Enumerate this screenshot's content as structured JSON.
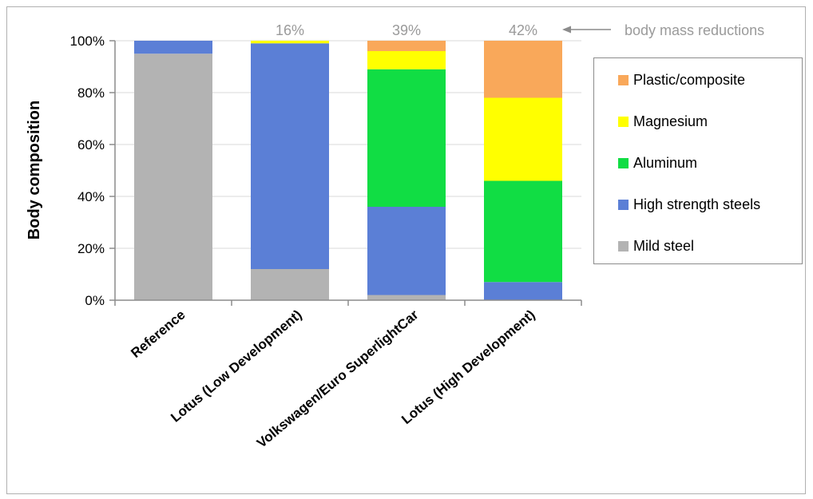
{
  "chart_data": {
    "type": "bar",
    "stacked": true,
    "categories": [
      "Reference",
      "Lotus (Low Development)",
      "Volkswagen/Euro SuperlightCar",
      "Lotus (High Development)"
    ],
    "ylabel": "Body composition",
    "ylim": [
      0,
      100
    ],
    "yticks": [
      "0%",
      "20%",
      "40%",
      "60%",
      "80%",
      "100%"
    ],
    "grid": true,
    "legend_position": "right",
    "series": [
      {
        "name": "Mild steel",
        "color": "#b3b3b3",
        "values": [
          95,
          12,
          2,
          0
        ]
      },
      {
        "name": "High strength steels",
        "color": "#5b7fd6",
        "values": [
          5,
          87,
          34,
          7
        ]
      },
      {
        "name": "Aluminum",
        "color": "#11dd44",
        "values": [
          0,
          0,
          53,
          39
        ]
      },
      {
        "name": "Magnesium",
        "color": "#ffff00",
        "values": [
          0,
          1,
          7,
          32
        ]
      },
      {
        "name": "Plastic/composite",
        "color": "#f9a85a",
        "values": [
          0,
          0,
          4,
          22
        ]
      }
    ],
    "legend_order": [
      "Plastic/composite",
      "Magnesium",
      "Aluminum",
      "High strength steels",
      "Mild steel"
    ],
    "bar_annotations": [
      "",
      "16%",
      "39%",
      "42%"
    ],
    "annotation_note": "body mass reductions"
  }
}
